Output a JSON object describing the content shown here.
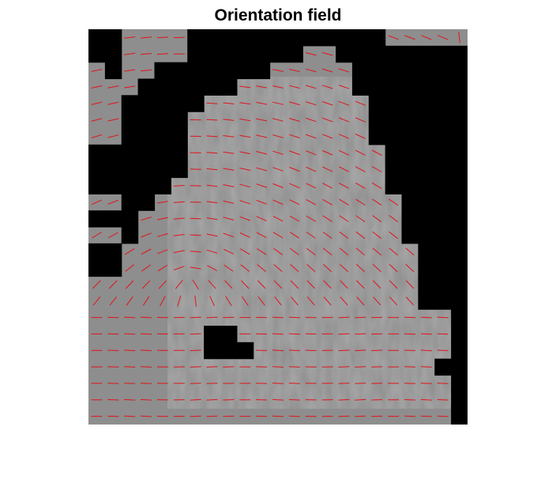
{
  "figure": {
    "title": "Orientation field"
  },
  "image": {
    "description_free": true,
    "background_color": "#8e8e8e",
    "mask_color": "#000000",
    "line_color": "#e0141c",
    "grid": {
      "cols": 23,
      "rows": 24
    },
    "masked_blocks": [
      [
        0,
        0
      ],
      [
        0,
        1
      ],
      [
        1,
        0
      ],
      [
        1,
        1
      ],
      [
        1,
        2
      ],
      [
        6,
        0
      ],
      [
        7,
        0
      ],
      [
        8,
        0
      ],
      [
        9,
        0
      ],
      [
        10,
        0
      ],
      [
        11,
        0
      ],
      [
        12,
        0
      ],
      [
        13,
        0
      ],
      [
        14,
        0
      ],
      [
        15,
        0
      ],
      [
        16,
        0
      ],
      [
        17,
        0
      ],
      [
        6,
        1
      ],
      [
        7,
        1
      ],
      [
        8,
        1
      ],
      [
        9,
        1
      ],
      [
        10,
        1
      ],
      [
        11,
        1
      ],
      [
        12,
        1
      ],
      [
        15,
        1
      ],
      [
        16,
        1
      ],
      [
        17,
        1
      ],
      [
        18,
        1
      ],
      [
        19,
        1
      ],
      [
        20,
        1
      ],
      [
        21,
        1
      ],
      [
        22,
        1
      ],
      [
        4,
        2
      ],
      [
        5,
        2
      ],
      [
        6,
        2
      ],
      [
        7,
        2
      ],
      [
        8,
        2
      ],
      [
        9,
        2
      ],
      [
        10,
        2
      ],
      [
        16,
        2
      ],
      [
        17,
        2
      ],
      [
        18,
        2
      ],
      [
        19,
        2
      ],
      [
        20,
        2
      ],
      [
        21,
        2
      ],
      [
        22,
        2
      ],
      [
        3,
        3
      ],
      [
        4,
        3
      ],
      [
        5,
        3
      ],
      [
        6,
        3
      ],
      [
        7,
        3
      ],
      [
        8,
        3
      ],
      [
        16,
        3
      ],
      [
        17,
        3
      ],
      [
        18,
        3
      ],
      [
        19,
        3
      ],
      [
        20,
        3
      ],
      [
        21,
        3
      ],
      [
        22,
        3
      ],
      [
        2,
        4
      ],
      [
        3,
        4
      ],
      [
        4,
        4
      ],
      [
        5,
        4
      ],
      [
        6,
        4
      ],
      [
        17,
        4
      ],
      [
        18,
        4
      ],
      [
        19,
        4
      ],
      [
        20,
        4
      ],
      [
        21,
        4
      ],
      [
        22,
        4
      ],
      [
        2,
        5
      ],
      [
        3,
        5
      ],
      [
        4,
        5
      ],
      [
        5,
        5
      ],
      [
        17,
        5
      ],
      [
        18,
        5
      ],
      [
        19,
        5
      ],
      [
        20,
        5
      ],
      [
        21,
        5
      ],
      [
        22,
        5
      ],
      [
        2,
        6
      ],
      [
        3,
        6
      ],
      [
        4,
        6
      ],
      [
        5,
        6
      ],
      [
        17,
        6
      ],
      [
        18,
        6
      ],
      [
        19,
        6
      ],
      [
        20,
        6
      ],
      [
        21,
        6
      ],
      [
        22,
        6
      ],
      [
        0,
        7
      ],
      [
        1,
        7
      ],
      [
        2,
        7
      ],
      [
        3,
        7
      ],
      [
        4,
        7
      ],
      [
        5,
        7
      ],
      [
        18,
        7
      ],
      [
        19,
        7
      ],
      [
        20,
        7
      ],
      [
        21,
        7
      ],
      [
        22,
        7
      ],
      [
        0,
        8
      ],
      [
        1,
        8
      ],
      [
        2,
        8
      ],
      [
        3,
        8
      ],
      [
        4,
        8
      ],
      [
        5,
        8
      ],
      [
        18,
        8
      ],
      [
        19,
        8
      ],
      [
        20,
        8
      ],
      [
        21,
        8
      ],
      [
        22,
        8
      ],
      [
        0,
        9
      ],
      [
        1,
        9
      ],
      [
        2,
        9
      ],
      [
        3,
        9
      ],
      [
        4,
        9
      ],
      [
        18,
        9
      ],
      [
        19,
        9
      ],
      [
        20,
        9
      ],
      [
        21,
        9
      ],
      [
        22,
        9
      ],
      [
        2,
        10
      ],
      [
        3,
        10
      ],
      [
        19,
        10
      ],
      [
        20,
        10
      ],
      [
        21,
        10
      ],
      [
        22,
        10
      ],
      [
        0,
        11
      ],
      [
        1,
        11
      ],
      [
        2,
        11
      ],
      [
        19,
        11
      ],
      [
        20,
        11
      ],
      [
        21,
        11
      ],
      [
        22,
        11
      ],
      [
        2,
        12
      ],
      [
        19,
        12
      ],
      [
        20,
        12
      ],
      [
        21,
        12
      ],
      [
        22,
        12
      ],
      [
        0,
        13
      ],
      [
        1,
        13
      ],
      [
        20,
        13
      ],
      [
        21,
        13
      ],
      [
        22,
        13
      ],
      [
        0,
        14
      ],
      [
        1,
        14
      ],
      [
        20,
        14
      ],
      [
        21,
        14
      ],
      [
        22,
        14
      ],
      [
        20,
        15
      ],
      [
        21,
        15
      ],
      [
        22,
        15
      ],
      [
        20,
        16
      ],
      [
        21,
        16
      ],
      [
        22,
        16
      ],
      [
        7,
        18
      ],
      [
        8,
        18
      ],
      [
        7,
        19
      ],
      [
        8,
        19
      ],
      [
        9,
        19
      ],
      [
        21,
        20
      ],
      [
        22,
        20
      ],
      [
        22,
        21
      ],
      [
        22,
        22
      ],
      [
        22,
        23
      ],
      [
        22,
        17
      ],
      [
        22,
        18
      ],
      [
        22,
        19
      ]
    ]
  }
}
